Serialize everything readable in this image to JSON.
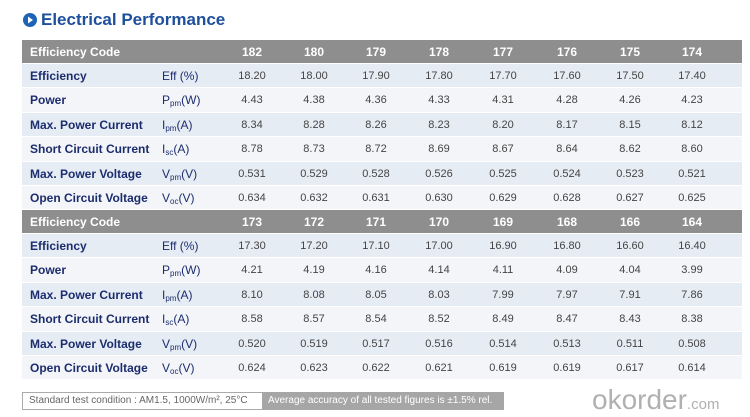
{
  "header": {
    "title": "Electrical Performance"
  },
  "row_labels": [
    "Efficiency",
    "Power",
    "Max. Power Current",
    "Short Circuit Current",
    "Max. Power Voltage",
    "Open Circuit Voltage"
  ],
  "units": [
    {
      "main": "Eff (%)"
    },
    {
      "main": "P",
      "sub": "pm",
      "tail": "(W)"
    },
    {
      "main": "I",
      "sub": "pm",
      "tail": "(A)"
    },
    {
      "main": "I",
      "sub": "sc",
      "tail": "(A)"
    },
    {
      "main": "V",
      "sub": "pm",
      "tail": "(V)"
    },
    {
      "main": "V",
      "sub": "oc",
      "tail": "(V)"
    }
  ],
  "tables": [
    {
      "code_label": "Efficiency Code",
      "codes": [
        "182",
        "180",
        "179",
        "178",
        "177",
        "176",
        "175",
        "174"
      ],
      "rows": [
        [
          "18.20",
          "18.00",
          "17.90",
          "17.80",
          "17.70",
          "17.60",
          "17.50",
          "17.40"
        ],
        [
          "4.43",
          "4.38",
          "4.36",
          "4.33",
          "4.31",
          "4.28",
          "4.26",
          "4.23"
        ],
        [
          "8.34",
          "8.28",
          "8.26",
          "8.23",
          "8.20",
          "8.17",
          "8.15",
          "8.12"
        ],
        [
          "8.78",
          "8.73",
          "8.72",
          "8.69",
          "8.67",
          "8.64",
          "8.62",
          "8.60"
        ],
        [
          "0.531",
          "0.529",
          "0.528",
          "0.526",
          "0.525",
          "0.524",
          "0.523",
          "0.521"
        ],
        [
          "0.634",
          "0.632",
          "0.631",
          "0.630",
          "0.629",
          "0.628",
          "0.627",
          "0.625"
        ]
      ]
    },
    {
      "code_label": "Efficiency Code",
      "codes": [
        "173",
        "172",
        "171",
        "170",
        "169",
        "168",
        "166",
        "164"
      ],
      "rows": [
        [
          "17.30",
          "17.20",
          "17.10",
          "17.00",
          "16.90",
          "16.80",
          "16.60",
          "16.40"
        ],
        [
          "4.21",
          "4.19",
          "4.16",
          "4.14",
          "4.11",
          "4.09",
          "4.04",
          "3.99"
        ],
        [
          "8.10",
          "8.08",
          "8.05",
          "8.03",
          "7.99",
          "7.97",
          "7.91",
          "7.86"
        ],
        [
          "8.58",
          "8.57",
          "8.54",
          "8.52",
          "8.49",
          "8.47",
          "8.43",
          "8.38"
        ],
        [
          "0.520",
          "0.519",
          "0.517",
          "0.516",
          "0.514",
          "0.513",
          "0.511",
          "0.508"
        ],
        [
          "0.624",
          "0.623",
          "0.622",
          "0.621",
          "0.619",
          "0.619",
          "0.617",
          "0.614"
        ]
      ]
    }
  ],
  "footer": {
    "condition": "Standard test condition : AM1.5, 1000W/m², 25°C",
    "accuracy": "Average accuracy of all tested figures is ±1.5% rel."
  },
  "watermark": {
    "main": "okorder",
    "suffix": ".com"
  }
}
